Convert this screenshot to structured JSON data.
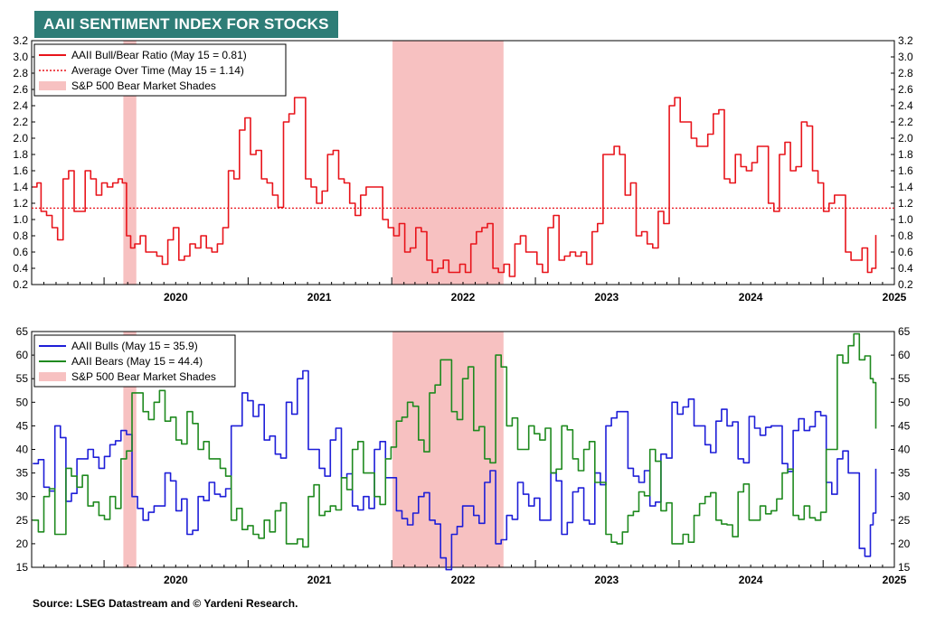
{
  "header": {
    "title": "AAII SENTIMENT INDEX FOR STOCKS",
    "source": "Source: LSEG Datastream and © Yardeni Research."
  },
  "colors": {
    "ratio": "#e8141b",
    "average": "#e8141b",
    "bulls": "#1e1ed8",
    "bears": "#1f8a1f",
    "shade": "#f7c1c1",
    "title_bg": "#2e7d77"
  },
  "chart_data": [
    {
      "type": "line",
      "x_axis": {
        "start": "2019-07-01",
        "end": "2025-07-01",
        "labels": [
          "2020",
          "2021",
          "2022",
          "2023",
          "2024",
          "2025"
        ]
      },
      "ylim": [
        0.2,
        3.2
      ],
      "yticks": [
        "0.2",
        "0.4",
        "0.6",
        "0.8",
        "1.0",
        "1.2",
        "1.4",
        "1.6",
        "1.8",
        "2.0",
        "2.2",
        "2.4",
        "2.6",
        "2.8",
        "3.0",
        "3.2"
      ],
      "legend": [
        {
          "label": "AAII Bull/Bear Ratio (May 15 = 0.81)",
          "style": "line",
          "color": "#e8141b"
        },
        {
          "label": "Average Over Time (May 15 = 1.14)",
          "style": "dotted",
          "color": "#e8141b"
        },
        {
          "label": "S&P 500 Bear Market Shades",
          "style": "box",
          "color": "#f7c1c1"
        }
      ],
      "shades": [
        {
          "start": "2020-02-19",
          "end": "2020-03-23"
        },
        {
          "start": "2022-01-03",
          "end": "2022-10-12"
        }
      ],
      "reference_line": {
        "value": 1.14
      },
      "series": [
        {
          "name": "AAII Bull/Bear Ratio",
          "x": [
            "2019-07-04",
            "2019-07-25",
            "2019-08-22",
            "2019-09-19",
            "2019-10-17",
            "2019-11-14",
            "2019-12-12",
            "2020-01-09",
            "2020-02-06",
            "2020-02-27",
            "2020-03-19",
            "2020-04-16",
            "2020-05-14",
            "2020-06-11",
            "2020-07-09",
            "2020-08-06",
            "2020-09-03",
            "2020-10-01",
            "2020-10-29",
            "2020-11-12",
            "2020-12-10",
            "2021-01-07",
            "2021-02-04",
            "2021-03-04",
            "2021-04-01",
            "2021-04-29",
            "2021-05-27",
            "2021-06-24",
            "2021-07-22",
            "2021-08-19",
            "2021-09-16",
            "2021-10-14",
            "2021-11-11",
            "2021-12-09",
            "2022-01-06",
            "2022-02-03",
            "2022-03-03",
            "2022-03-31",
            "2022-04-28",
            "2022-05-26",
            "2022-06-23",
            "2022-07-21",
            "2022-08-18",
            "2022-09-15",
            "2022-10-13",
            "2022-11-10",
            "2022-12-08",
            "2023-01-05",
            "2023-02-02",
            "2023-03-02",
            "2023-03-30",
            "2023-04-27",
            "2023-05-25",
            "2023-06-22",
            "2023-07-20",
            "2023-08-17",
            "2023-09-14",
            "2023-10-12",
            "2023-11-09",
            "2023-12-07",
            "2024-01-04",
            "2024-02-01",
            "2024-02-29",
            "2024-03-28",
            "2024-04-25",
            "2024-05-23",
            "2024-06-20",
            "2024-07-18",
            "2024-08-15",
            "2024-09-12",
            "2024-10-10",
            "2024-11-07",
            "2024-12-05",
            "2025-01-02",
            "2025-01-30",
            "2025-02-27",
            "2025-03-27",
            "2025-04-24",
            "2025-05-15"
          ],
          "values": [
            1.4,
            1.1,
            0.9,
            1.5,
            1.1,
            1.6,
            1.3,
            1.4,
            1.5,
            0.8,
            0.7,
            0.6,
            0.55,
            0.75,
            0.5,
            0.7,
            0.8,
            0.6,
            0.9,
            1.6,
            2.1,
            1.8,
            1.5,
            1.3,
            2.2,
            2.5,
            1.5,
            1.2,
            1.8,
            1.5,
            1.2,
            1.3,
            1.4,
            1.0,
            0.8,
            0.6,
            0.9,
            0.5,
            0.4,
            0.35,
            0.45,
            0.7,
            0.9,
            0.4,
            0.45,
            0.7,
            0.6,
            0.45,
            0.9,
            0.5,
            0.6,
            0.6,
            0.85,
            1.8,
            1.9,
            1.3,
            0.8,
            0.7,
            1.1,
            2.4,
            2.2,
            2.0,
            1.9,
            2.3,
            1.5,
            1.8,
            1.6,
            1.9,
            1.2,
            1.8,
            1.6,
            2.2,
            1.6,
            1.1,
            1.3,
            0.6,
            0.5,
            0.35,
            0.81
          ],
          "color": "#e8141b"
        }
      ]
    },
    {
      "type": "line",
      "x_axis": {
        "start": "2019-07-01",
        "end": "2025-07-01",
        "labels": [
          "2020",
          "2021",
          "2022",
          "2023",
          "2024",
          "2025"
        ]
      },
      "ylim": [
        15,
        65
      ],
      "yticks": [
        "15",
        "20",
        "25",
        "30",
        "35",
        "40",
        "45",
        "50",
        "55",
        "60",
        "65"
      ],
      "legend": [
        {
          "label": "AAII Bulls  (May 15 = 35.9)",
          "style": "line",
          "color": "#1e1ed8"
        },
        {
          "label": "AAII Bears (May 15 = 44.4)",
          "style": "line",
          "color": "#1f8a1f"
        },
        {
          "label": "S&P 500 Bear Market Shades",
          "style": "box",
          "color": "#f7c1c1"
        }
      ],
      "shades": [
        {
          "start": "2020-02-19",
          "end": "2020-03-23"
        },
        {
          "start": "2022-01-03",
          "end": "2022-10-12"
        }
      ],
      "series": [
        {
          "name": "AAII Bulls",
          "x": [
            "2019-07-04",
            "2019-08-01",
            "2019-08-29",
            "2019-09-26",
            "2019-10-24",
            "2019-11-21",
            "2019-12-19",
            "2020-01-16",
            "2020-02-13",
            "2020-03-12",
            "2020-04-09",
            "2020-05-07",
            "2020-06-04",
            "2020-07-02",
            "2020-07-30",
            "2020-08-27",
            "2020-09-24",
            "2020-10-22",
            "2020-11-19",
            "2020-12-17",
            "2021-01-14",
            "2021-02-11",
            "2021-03-11",
            "2021-04-08",
            "2021-05-06",
            "2021-06-03",
            "2021-07-01",
            "2021-07-29",
            "2021-08-26",
            "2021-09-23",
            "2021-10-21",
            "2021-11-18",
            "2021-12-16",
            "2022-01-13",
            "2022-02-10",
            "2022-03-10",
            "2022-04-07",
            "2022-05-05",
            "2022-06-02",
            "2022-06-30",
            "2022-07-28",
            "2022-08-25",
            "2022-09-22",
            "2022-10-20",
            "2022-11-17",
            "2022-12-15",
            "2023-01-12",
            "2023-02-09",
            "2023-03-09",
            "2023-04-06",
            "2023-05-04",
            "2023-06-01",
            "2023-06-29",
            "2023-07-27",
            "2023-08-24",
            "2023-09-21",
            "2023-10-19",
            "2023-11-16",
            "2023-12-14",
            "2024-01-11",
            "2024-02-08",
            "2024-03-07",
            "2024-04-04",
            "2024-05-02",
            "2024-05-30",
            "2024-06-27",
            "2024-07-25",
            "2024-08-22",
            "2024-09-19",
            "2024-10-17",
            "2024-11-14",
            "2024-12-12",
            "2025-01-09",
            "2025-02-06",
            "2025-03-06",
            "2025-04-03",
            "2025-05-01",
            "2025-05-15"
          ],
          "values": [
            37,
            32,
            45,
            29,
            38,
            40,
            36,
            41,
            44,
            30,
            25,
            28,
            35,
            27,
            22,
            30,
            33,
            30,
            45,
            52,
            47,
            42,
            39,
            50,
            55,
            40,
            36,
            42,
            34,
            28,
            30,
            40,
            34,
            27,
            24,
            30,
            25,
            17,
            22,
            28,
            26,
            33,
            20,
            26,
            33,
            28,
            25,
            35,
            22,
            31,
            25,
            35,
            45,
            48,
            36,
            33,
            28,
            39,
            50,
            49,
            45,
            41,
            46,
            45,
            38,
            47,
            43,
            45,
            37,
            44,
            44,
            48,
            33,
            38,
            35,
            19,
            24,
            35.9
          ],
          "color": "#1e1ed8"
        },
        {
          "name": "AAII Bears",
          "x": [
            "2019-07-04",
            "2019-08-01",
            "2019-08-29",
            "2019-09-26",
            "2019-10-24",
            "2019-11-21",
            "2019-12-19",
            "2020-01-16",
            "2020-02-13",
            "2020-03-12",
            "2020-04-09",
            "2020-05-07",
            "2020-06-04",
            "2020-07-02",
            "2020-07-30",
            "2020-08-27",
            "2020-09-24",
            "2020-10-22",
            "2020-11-19",
            "2020-12-17",
            "2021-01-14",
            "2021-02-11",
            "2021-03-11",
            "2021-04-08",
            "2021-05-06",
            "2021-06-03",
            "2021-07-01",
            "2021-07-29",
            "2021-08-26",
            "2021-09-23",
            "2021-10-21",
            "2021-11-18",
            "2021-12-16",
            "2022-01-13",
            "2022-02-10",
            "2022-03-10",
            "2022-04-07",
            "2022-05-05",
            "2022-06-02",
            "2022-06-30",
            "2022-07-28",
            "2022-08-25",
            "2022-09-22",
            "2022-10-20",
            "2022-11-17",
            "2022-12-15",
            "2023-01-12",
            "2023-02-09",
            "2023-03-09",
            "2023-04-06",
            "2023-05-04",
            "2023-06-01",
            "2023-06-29",
            "2023-07-27",
            "2023-08-24",
            "2023-09-21",
            "2023-10-19",
            "2023-11-16",
            "2023-12-14",
            "2024-01-11",
            "2024-02-08",
            "2024-03-07",
            "2024-04-04",
            "2024-05-02",
            "2024-05-30",
            "2024-06-27",
            "2024-07-25",
            "2024-08-22",
            "2024-09-19",
            "2024-10-17",
            "2024-11-14",
            "2024-12-12",
            "2025-01-09",
            "2025-02-06",
            "2025-03-06",
            "2025-04-03",
            "2025-05-01",
            "2025-05-15"
          ],
          "values": [
            25,
            30,
            22,
            36,
            32,
            28,
            26,
            30,
            38,
            52,
            48,
            50,
            46,
            42,
            48,
            40,
            38,
            36,
            25,
            23,
            22,
            25,
            27,
            20,
            21,
            30,
            26,
            28,
            34,
            40,
            35,
            30,
            38,
            46,
            50,
            42,
            52,
            59,
            48,
            55,
            44,
            38,
            60,
            45,
            40,
            45,
            42,
            35,
            45,
            38,
            40,
            33,
            22,
            20,
            26,
            31,
            40,
            27,
            20,
            22,
            26,
            30,
            25,
            24,
            31,
            25,
            28,
            27,
            35,
            26,
            28,
            25,
            40,
            60,
            62,
            59,
            55,
            44.4
          ],
          "color": "#1f8a1f"
        }
      ]
    }
  ]
}
